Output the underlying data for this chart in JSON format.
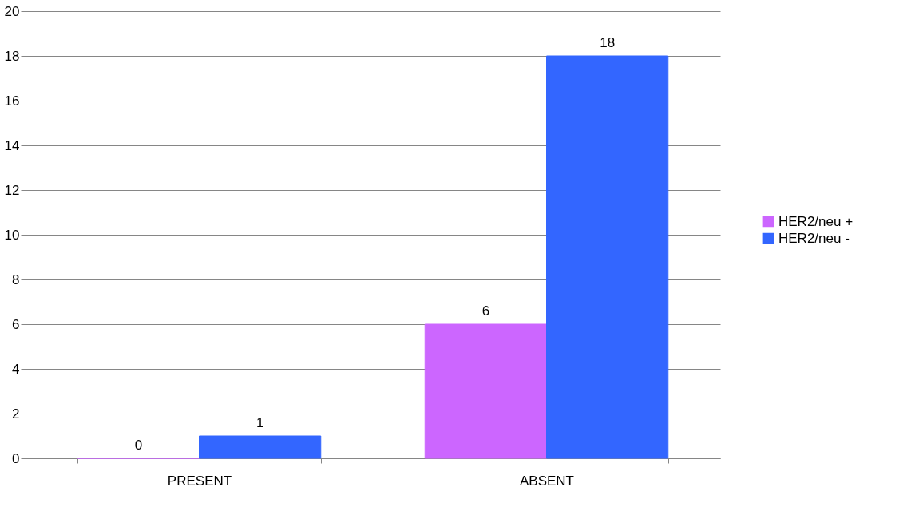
{
  "chart_data": {
    "type": "bar",
    "categories": [
      "PRESENT",
      "ABSENT"
    ],
    "series": [
      {
        "name": "HER2/neu +",
        "color": "#cc66ff",
        "values": [
          0,
          6
        ]
      },
      {
        "name": "HER2/neu -",
        "color": "#3366ff",
        "values": [
          1,
          18
        ]
      }
    ],
    "ylim": [
      0,
      20
    ],
    "yticks": [
      0,
      2,
      4,
      6,
      8,
      10,
      12,
      14,
      16,
      18,
      20
    ],
    "grid": "y",
    "legend": "right",
    "data_labels": true
  }
}
